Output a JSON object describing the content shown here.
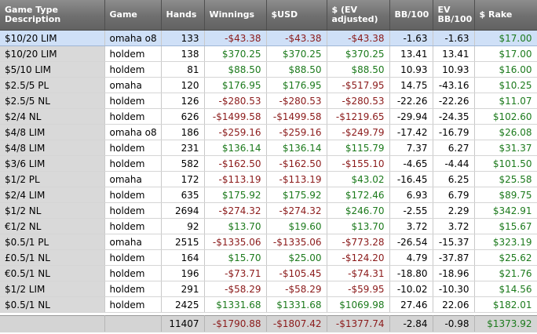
{
  "columns": [
    "Game Type Description",
    "Game",
    "Hands",
    "Winnings",
    "$USD",
    "$ (EV adjusted)",
    "BB/100",
    "EV BB/100",
    "$ Rake"
  ],
  "rows": [
    {
      "desc": "$10/20 LIM",
      "game": "omaha o8",
      "hands": "133",
      "winnings": "-$43.38",
      "usd": "-$43.38",
      "ev": "-$43.38",
      "bb": "-1.63",
      "evbb": "-1.63",
      "rake": "$17.00"
    },
    {
      "desc": "$10/20 LIM",
      "game": "holdem",
      "hands": "138",
      "winnings": "$370.25",
      "usd": "$370.25",
      "ev": "$370.25",
      "bb": "13.41",
      "evbb": "13.41",
      "rake": "$17.00"
    },
    {
      "desc": "$5/10 LIM",
      "game": "holdem",
      "hands": "81",
      "winnings": "$88.50",
      "usd": "$88.50",
      "ev": "$88.50",
      "bb": "10.93",
      "evbb": "10.93",
      "rake": "$16.00"
    },
    {
      "desc": "$2.5/5 PL",
      "game": "omaha",
      "hands": "120",
      "winnings": "$176.95",
      "usd": "$176.95",
      "ev": "-$517.95",
      "bb": "14.75",
      "evbb": "-43.16",
      "rake": "$10.25"
    },
    {
      "desc": "$2.5/5 NL",
      "game": "holdem",
      "hands": "126",
      "winnings": "-$280.53",
      "usd": "-$280.53",
      "ev": "-$280.53",
      "bb": "-22.26",
      "evbb": "-22.26",
      "rake": "$11.07"
    },
    {
      "desc": "$2/4 NL",
      "game": "holdem",
      "hands": "626",
      "winnings": "-$1499.58",
      "usd": "-$1499.58",
      "ev": "-$1219.65",
      "bb": "-29.94",
      "evbb": "-24.35",
      "rake": "$102.60"
    },
    {
      "desc": "$4/8 LIM",
      "game": "omaha o8",
      "hands": "186",
      "winnings": "-$259.16",
      "usd": "-$259.16",
      "ev": "-$249.79",
      "bb": "-17.42",
      "evbb": "-16.79",
      "rake": "$26.08"
    },
    {
      "desc": "$4/8 LIM",
      "game": "holdem",
      "hands": "231",
      "winnings": "$136.14",
      "usd": "$136.14",
      "ev": "$115.79",
      "bb": "7.37",
      "evbb": "6.27",
      "rake": "$31.37"
    },
    {
      "desc": "$3/6 LIM",
      "game": "holdem",
      "hands": "582",
      "winnings": "-$162.50",
      "usd": "-$162.50",
      "ev": "-$155.10",
      "bb": "-4.65",
      "evbb": "-4.44",
      "rake": "$101.50"
    },
    {
      "desc": "$1/2 PL",
      "game": "omaha",
      "hands": "172",
      "winnings": "-$113.19",
      "usd": "-$113.19",
      "ev": "$43.02",
      "bb": "-16.45",
      "evbb": "6.25",
      "rake": "$25.58"
    },
    {
      "desc": "$2/4 LIM",
      "game": "holdem",
      "hands": "635",
      "winnings": "$175.92",
      "usd": "$175.92",
      "ev": "$172.46",
      "bb": "6.93",
      "evbb": "6.79",
      "rake": "$89.75"
    },
    {
      "desc": "$1/2 NL",
      "game": "holdem",
      "hands": "2694",
      "winnings": "-$274.32",
      "usd": "-$274.32",
      "ev": "$246.70",
      "bb": "-2.55",
      "evbb": "2.29",
      "rake": "$342.91"
    },
    {
      "desc": "€1/2 NL",
      "game": "holdem",
      "hands": "92",
      "winnings": "$13.70",
      "usd": "$19.60",
      "ev": "$13.70",
      "bb": "3.72",
      "evbb": "3.72",
      "rake": "$15.67"
    },
    {
      "desc": "$0.5/1 PL",
      "game": "omaha",
      "hands": "2515",
      "winnings": "-$1335.06",
      "usd": "-$1335.06",
      "ev": "-$773.28",
      "bb": "-26.54",
      "evbb": "-15.37",
      "rake": "$323.19"
    },
    {
      "desc": "£0.5/1 NL",
      "game": "holdem",
      "hands": "164",
      "winnings": "$15.70",
      "usd": "$25.00",
      "ev": "-$124.20",
      "bb": "4.79",
      "evbb": "-37.87",
      "rake": "$25.62"
    },
    {
      "desc": "€0.5/1 NL",
      "game": "holdem",
      "hands": "196",
      "winnings": "-$73.71",
      "usd": "-$105.45",
      "ev": "-$74.31",
      "bb": "-18.80",
      "evbb": "-18.96",
      "rake": "$21.76"
    },
    {
      "desc": "$1/2 LIM",
      "game": "holdem",
      "hands": "291",
      "winnings": "-$58.29",
      "usd": "-$58.29",
      "ev": "-$59.95",
      "bb": "-10.02",
      "evbb": "-10.30",
      "rake": "$14.56"
    },
    {
      "desc": "$0.5/1 NL",
      "game": "holdem",
      "hands": "2425",
      "winnings": "$1331.68",
      "usd": "$1331.68",
      "ev": "$1069.98",
      "bb": "27.46",
      "evbb": "22.06",
      "rake": "$182.01"
    }
  ],
  "totals": {
    "hands": "11407",
    "winnings": "-$1790.88",
    "usd": "-$1807.42",
    "ev": "-$1377.74",
    "bb": "-2.84",
    "evbb": "-0.98",
    "rake": "$1373.92"
  },
  "colors": {
    "positive": "#1c7a1c",
    "negative": "#8b1a1a",
    "header": "#6f6f6f",
    "selected_row": "#cfe0f7"
  }
}
